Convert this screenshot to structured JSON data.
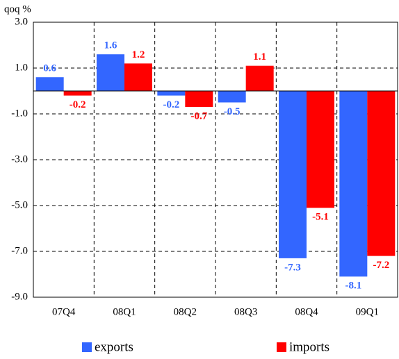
{
  "chart_data": {
    "type": "bar",
    "y_label": "qoq %",
    "categories": [
      "07Q4",
      "08Q1",
      "08Q2",
      "08Q3",
      "08Q4",
      "09Q1"
    ],
    "series": [
      {
        "name": "exports",
        "color": "#3366ff",
        "values": [
          0.6,
          1.6,
          -0.2,
          -0.5,
          -7.3,
          -8.1
        ]
      },
      {
        "name": "imports",
        "color": "#ff0000",
        "values": [
          -0.2,
          1.2,
          -0.7,
          1.1,
          -5.1,
          -7.2
        ]
      }
    ],
    "ylim": [
      -9,
      3
    ],
    "yticks": [
      {
        "value": -9,
        "label": "-9.0"
      },
      {
        "value": -7,
        "label": "-7.0"
      },
      {
        "value": -5,
        "label": "-5.0"
      },
      {
        "value": -3,
        "label": "-3.0"
      },
      {
        "value": -1,
        "label": "-1.0"
      },
      {
        "value": 1,
        "label": "1.0"
      },
      {
        "value": 3,
        "label": "3.0"
      }
    ],
    "grid": true,
    "legend": "bottom"
  }
}
